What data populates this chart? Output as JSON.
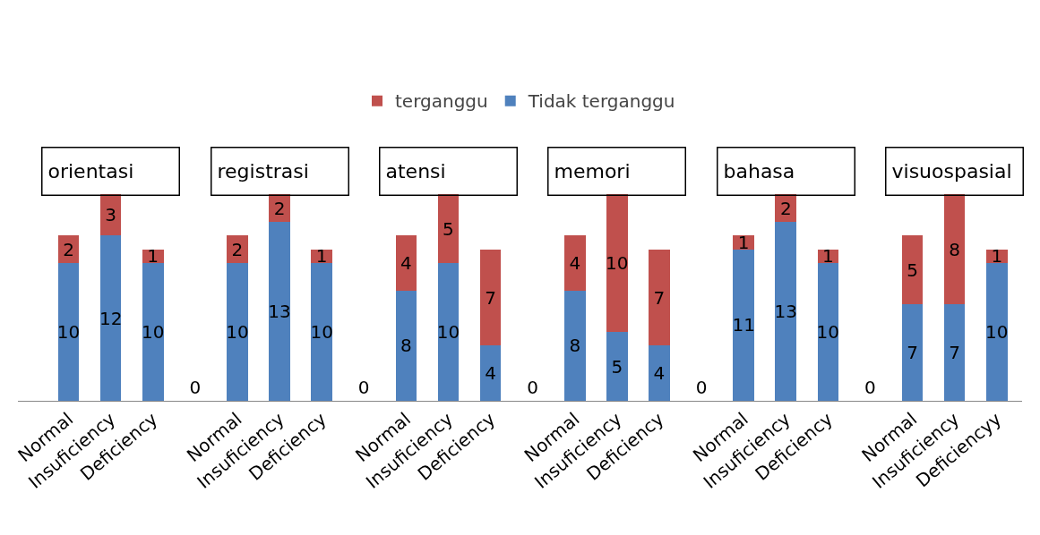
{
  "chart_data": {
    "type": "bar",
    "stacked": true,
    "data_labels": true,
    "legend": "top",
    "grid": false,
    "categories": [
      "Normal",
      "Insuficiency",
      "Deficiency",
      null,
      "Normal",
      "Insuficiency",
      "Deficiency",
      null,
      "Normal",
      "Insuficiency",
      "Deficiency",
      null,
      "Normal",
      "Insuficiency",
      "Deficiency",
      null,
      "Normal",
      "Insuficiency",
      "Deficiency",
      null,
      "Normal",
      "Insuficiency",
      "Deficiencyy"
    ],
    "series": [
      {
        "name": "Tidak terganggu",
        "color": "#4f81bd",
        "values": [
          10,
          12,
          10,
          0,
          10,
          13,
          10,
          0,
          8,
          10,
          4,
          0,
          8,
          5,
          4,
          0,
          11,
          13,
          10,
          0,
          7,
          7,
          10
        ]
      },
      {
        "name": "terganggu",
        "color": "#c0504d",
        "values": [
          2,
          3,
          1,
          null,
          2,
          2,
          1,
          null,
          4,
          5,
          7,
          null,
          4,
          10,
          7,
          null,
          1,
          2,
          1,
          null,
          5,
          8,
          1
        ]
      }
    ],
    "annotations": [
      "orientasi",
      "registrasi",
      "atensi",
      "memori",
      "bahasa",
      "visuospasial"
    ]
  }
}
